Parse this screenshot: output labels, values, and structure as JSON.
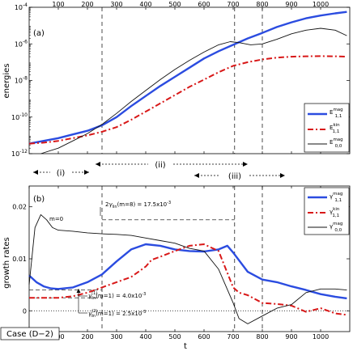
{
  "chart_data": [
    {
      "panel": "(a)",
      "type": "line",
      "ylabel": "energies",
      "yscale": "log",
      "xlim": [
        0,
        1100
      ],
      "ylim_log10": [
        -12,
        -4
      ],
      "x_ticks_top": [
        "100",
        "200",
        "300",
        "400",
        "500",
        "600",
        "700",
        "800",
        "900",
        "1000"
      ],
      "y_ticks": [
        {
          "base": "10",
          "exp": "-12",
          "v": -12
        },
        {
          "base": "10",
          "exp": "-10",
          "v": -10
        },
        {
          "base": "10",
          "exp": "-8",
          "v": -8
        },
        {
          "base": "10",
          "exp": "-6",
          "v": -6
        },
        {
          "base": "10",
          "exp": "-4",
          "v": -4
        }
      ],
      "vlines_t": [
        250,
        705,
        800
      ],
      "series": [
        {
          "id": "Emag11",
          "sym": "E",
          "sup": "mag",
          "sub": "1,1",
          "color": "#2b4ce0",
          "width": 2.4,
          "dash": "",
          "x": [
            0,
            50,
            100,
            150,
            200,
            250,
            300,
            350,
            400,
            450,
            500,
            550,
            600,
            650,
            700,
            750,
            800,
            850,
            900,
            950,
            1000,
            1050,
            1090
          ],
          "y": [
            -11.45,
            -11.3,
            -11.15,
            -10.95,
            -10.75,
            -10.45,
            -10.0,
            -9.4,
            -8.85,
            -8.3,
            -7.8,
            -7.3,
            -6.8,
            -6.4,
            -6.05,
            -5.7,
            -5.4,
            -5.08,
            -4.82,
            -4.6,
            -4.45,
            -4.33,
            -4.25
          ]
        },
        {
          "id": "Ekin11",
          "sym": "E",
          "sup": "kin",
          "sub": "1,1",
          "color": "#d81818",
          "width": 2.0,
          "dash": "7,3,2,3",
          "x": [
            0,
            50,
            100,
            150,
            200,
            250,
            300,
            350,
            400,
            450,
            500,
            550,
            600,
            650,
            700,
            750,
            800,
            850,
            900,
            950,
            1000,
            1050,
            1090
          ],
          "y": [
            -11.45,
            -11.4,
            -11.3,
            -11.15,
            -11.0,
            -10.8,
            -10.55,
            -10.15,
            -9.7,
            -9.25,
            -8.8,
            -8.35,
            -7.95,
            -7.55,
            -7.2,
            -7.0,
            -6.85,
            -6.75,
            -6.7,
            -6.68,
            -6.67,
            -6.68,
            -6.7
          ]
        },
        {
          "id": "Emag00",
          "sym": "E",
          "sup": "mag",
          "sub": "0,0",
          "color": "#111111",
          "width": 0.9,
          "dash": "",
          "x": [
            40,
            100,
            150,
            200,
            250,
            300,
            350,
            400,
            450,
            500,
            550,
            600,
            650,
            690,
            720,
            760,
            800,
            850,
            900,
            950,
            1000,
            1050,
            1090
          ],
          "y": [
            -12.2,
            -11.7,
            -11.3,
            -10.9,
            -10.4,
            -9.8,
            -9.15,
            -8.55,
            -7.95,
            -7.4,
            -6.9,
            -6.45,
            -6.05,
            -5.88,
            -5.93,
            -6.05,
            -6.0,
            -5.75,
            -5.45,
            -5.25,
            -5.15,
            -5.25,
            -5.55
          ]
        }
      ],
      "region_labels": [
        "(i)",
        "(ii)",
        "(iii)"
      ]
    },
    {
      "panel": "(b)",
      "type": "line",
      "ylabel": "growth rates",
      "xlabel": "t",
      "xlim": [
        0,
        1100
      ],
      "ylim": [
        -0.004,
        0.024
      ],
      "x_ticks": [
        "0",
        "100",
        "200",
        "300",
        "400",
        "500",
        "600",
        "700",
        "800",
        "900",
        "1000"
      ],
      "y_ticks": [
        "0",
        "0.01",
        "0.02"
      ],
      "vlines_t": [
        250,
        705,
        800
      ],
      "series": [
        {
          "id": "g_mag11",
          "sym": "γ",
          "sup": "mag",
          "sub": "1,1",
          "color": "#2b4ce0",
          "width": 2.4,
          "dash": "",
          "x": [
            0,
            25,
            50,
            75,
            100,
            150,
            200,
            250,
            300,
            350,
            400,
            450,
            500,
            550,
            600,
            650,
            680,
            700,
            750,
            800,
            850,
            900,
            950,
            1000,
            1050,
            1090
          ],
          "y": [
            0.0068,
            0.0055,
            0.0047,
            0.0043,
            0.0042,
            0.0045,
            0.0055,
            0.007,
            0.0095,
            0.0118,
            0.0128,
            0.0125,
            0.0118,
            0.0115,
            0.0114,
            0.0118,
            0.0125,
            0.0112,
            0.0075,
            0.006,
            0.0055,
            0.0047,
            0.004,
            0.0032,
            0.0027,
            0.0024
          ]
        },
        {
          "id": "g_kin11",
          "sym": "γ",
          "sup": "kin",
          "sub": "1,1",
          "color": "#d81818",
          "width": 2.0,
          "dash": "7,3,2,3",
          "x": [
            0,
            50,
            100,
            150,
            200,
            250,
            300,
            350,
            400,
            420,
            450,
            500,
            550,
            600,
            650,
            700,
            720,
            750,
            800,
            850,
            900,
            950,
            1000,
            1050,
            1090
          ],
          "y": [
            0.0025,
            0.0025,
            0.0025,
            0.0028,
            0.0035,
            0.0045,
            0.0055,
            0.0065,
            0.0085,
            0.0098,
            0.0104,
            0.0115,
            0.0125,
            0.0128,
            0.0115,
            0.0045,
            0.0035,
            0.003,
            0.0015,
            0.0013,
            0.001,
            -0.0002,
            0.0005,
            -0.0005,
            -0.0008
          ]
        },
        {
          "id": "g_mag00",
          "sym": "γ",
          "sup": "mag",
          "sub": "0,0",
          "color": "#111111",
          "width": 0.9,
          "dash": "",
          "x": [
            0,
            20,
            40,
            60,
            80,
            100,
            150,
            200,
            250,
            300,
            350,
            400,
            450,
            500,
            550,
            600,
            650,
            700,
            720,
            750,
            800,
            850,
            900,
            950,
            1000,
            1050,
            1090
          ],
          "y": [
            0.005,
            0.016,
            0.0185,
            0.0175,
            0.016,
            0.0155,
            0.0153,
            0.015,
            0.0148,
            0.0147,
            0.0145,
            0.014,
            0.0135,
            0.013,
            0.012,
            0.0115,
            0.008,
            0.0015,
            -0.0015,
            -0.0025,
            -0.001,
            0.0005,
            0.0012,
            0.0035,
            0.0042,
            0.0042,
            0.004
          ]
        }
      ],
      "annotations": {
        "m0": "m=0",
        "lin_m8_pre": "2",
        "lin_m8_g": "γ",
        "lin_m8_sub": "lin",
        "lin_m8_rest": "(m=8) = 17.5x10",
        "lin_m8_exp": "-3",
        "lin1_g": "γ",
        "lin1_sup": "(1)",
        "lin1_sub": "lin",
        "lin1_rest": "(m=1) = 4.0x10",
        "lin1_exp": "-3",
        "lin2_g": "γ",
        "lin2_sup": "(2)",
        "lin2_sub": "lin",
        "lin2_rest": "(m=1) = 2.5x10",
        "lin2_exp": "-3"
      },
      "case_label": "Case (D−2)"
    }
  ]
}
